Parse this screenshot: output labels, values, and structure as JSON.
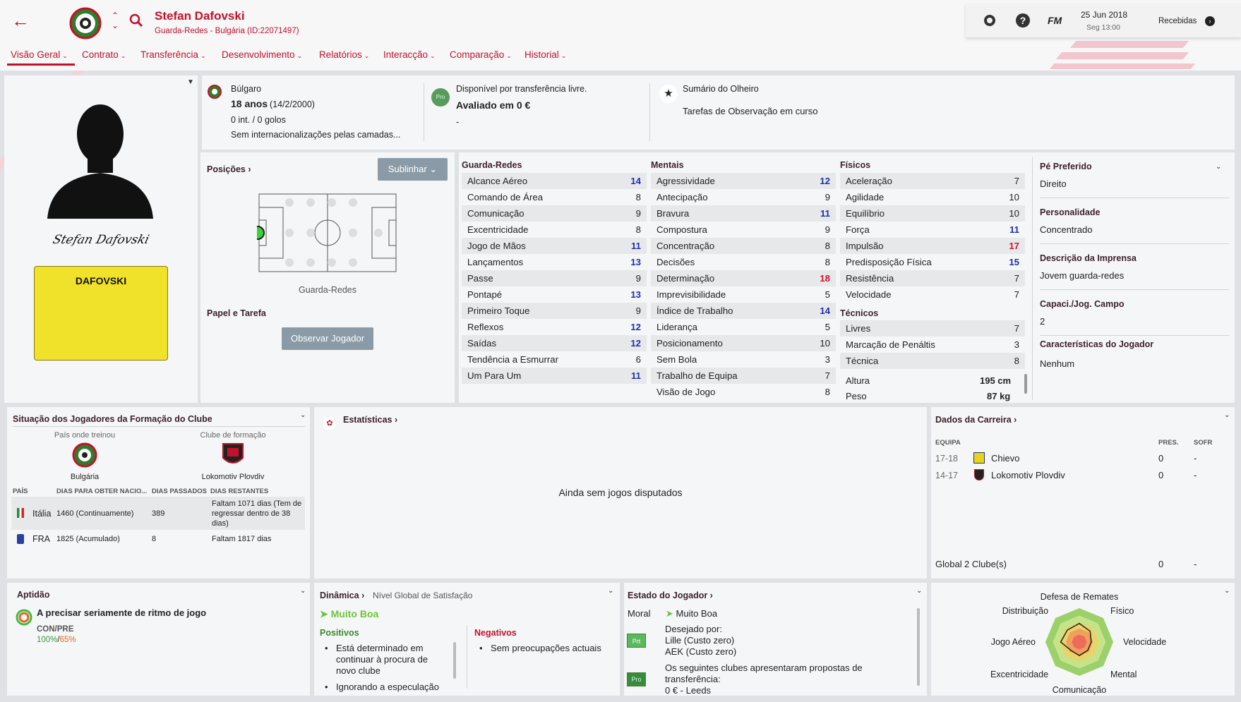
{
  "header": {
    "player_name": "Stefan Dafovski",
    "subtitle": "Guarda-Redes - Bulgária (ID:22071497)",
    "date": "25 Jun 2018",
    "time": "Seg 13:00",
    "fm_logo": "FM",
    "inbox_label": "Recebidas",
    "back_icon": "back-arrow-icon",
    "search_icon": "search-icon"
  },
  "tabs": [
    {
      "label": "Visão Geral"
    },
    {
      "label": "Contrato"
    },
    {
      "label": "Transferência"
    },
    {
      "label": "Desenvolvimento"
    },
    {
      "label": "Relatórios"
    },
    {
      "label": "Interacção"
    },
    {
      "label": "Comparação"
    },
    {
      "label": "Historial"
    }
  ],
  "profile": {
    "signature": "Stefan Dafovski",
    "shirt_name": "DAFOVSKI",
    "shirt_color": "#f0e12a"
  },
  "info": {
    "nationality": "Búlgaro",
    "age": "18 anos",
    "dob": "(14/2/2000)",
    "caps": "0 int. / 0 golos",
    "youth_caps": "Sem internacionalizações pelas camadas...",
    "transfer_status": "Disponível por transferência livre.",
    "value": "Avaliado em 0 €",
    "value_sub": "-",
    "pro_badge": "Pro",
    "scout_title": "Sumário do Olheiro",
    "scout_text": "Tarefas de Observação em curso"
  },
  "positions": {
    "title": "Posições",
    "highlight_btn": "Sublinhar",
    "position_label": "Guarda-Redes",
    "role_title": "Papel e Tarefa",
    "scout_btn": "Observar Jogador"
  },
  "attributes": {
    "goalkeeping_title": "Guarda-Redes",
    "goalkeeping": [
      {
        "name": "Alcance Aéreo",
        "value": "14"
      },
      {
        "name": "Comando de Área",
        "value": "8"
      },
      {
        "name": "Comunicação",
        "value": "9"
      },
      {
        "name": "Excentricidade",
        "value": "8"
      },
      {
        "name": "Jogo de Mãos",
        "value": "11"
      },
      {
        "name": "Lançamentos",
        "value": "13"
      },
      {
        "name": "Passe",
        "value": "9"
      },
      {
        "name": "Pontapé",
        "value": "13"
      },
      {
        "name": "Primeiro Toque",
        "value": "9"
      },
      {
        "name": "Reflexos",
        "value": "12"
      },
      {
        "name": "Saídas",
        "value": "12"
      },
      {
        "name": "Tendência a Esmurrar",
        "value": "6"
      },
      {
        "name": "Um Para Um",
        "value": "11"
      }
    ],
    "mental_title": "Mentais",
    "mental": [
      {
        "name": "Agressividade",
        "value": "12"
      },
      {
        "name": "Antecipação",
        "value": "9"
      },
      {
        "name": "Bravura",
        "value": "11"
      },
      {
        "name": "Compostura",
        "value": "9"
      },
      {
        "name": "Concentração",
        "value": "8"
      },
      {
        "name": "Decisões",
        "value": "8"
      },
      {
        "name": "Determinação",
        "value": "18"
      },
      {
        "name": "Imprevisibilidade",
        "value": "5"
      },
      {
        "name": "Índice de Trabalho",
        "value": "14"
      },
      {
        "name": "Liderança",
        "value": "5"
      },
      {
        "name": "Posicionamento",
        "value": "10"
      },
      {
        "name": "Sem Bola",
        "value": "3"
      },
      {
        "name": "Trabalho de Equipa",
        "value": "7"
      },
      {
        "name": "Visão de Jogo",
        "value": "8"
      }
    ],
    "physical_title": "Físicos",
    "physical": [
      {
        "name": "Aceleração",
        "value": "7"
      },
      {
        "name": "Agilidade",
        "value": "10"
      },
      {
        "name": "Equilíbrio",
        "value": "10"
      },
      {
        "name": "Força",
        "value": "11"
      },
      {
        "name": "Impulsão",
        "value": "17"
      },
      {
        "name": "Predisposição Física",
        "value": "15"
      },
      {
        "name": "Resistência",
        "value": "7"
      },
      {
        "name": "Velocidade",
        "value": "7"
      }
    ],
    "technical_title": "Técnicos",
    "technical": [
      {
        "name": "Livres",
        "value": "7"
      },
      {
        "name": "Marcação de Penáltis",
        "value": "3"
      },
      {
        "name": "Técnica",
        "value": "8"
      }
    ],
    "height_label": "Altura",
    "height": "195 cm",
    "weight_label": "Peso",
    "weight": "87 kg"
  },
  "side": {
    "foot_label": "Pé Preferido",
    "foot": "Direito",
    "personality_label": "Personalidade",
    "personality": "Concentrado",
    "press_label": "Descrição da Imprensa",
    "press": "Jovem guarda-redes",
    "caps_label": "Capaci./Jog. Campo",
    "caps": "2",
    "traits_label": "Características do Jogador",
    "traits": "Nenhum"
  },
  "homegrown": {
    "title": "Situação dos Jogadores da Formação do Clube",
    "trained_label": "País onde treinou",
    "trained": "Bulgária",
    "club_label": "Clube de formação",
    "club": "Lokomotiv Plovdiv",
    "col_country": "PAÍS",
    "col_days_needed": "DIAS PARA OBTER NACIO...",
    "col_days_passed": "DIAS PASSADOS",
    "col_days_left": "DIAS RESTANTES",
    "rows": [
      {
        "country": "Itália",
        "needed": "1460 (Continuamente)",
        "passed": "389",
        "left": "Faltam 1071 dias (Tem de regressar dentro de 38 dias)"
      },
      {
        "country": "FRA",
        "needed": "1825 (Acumulado)",
        "passed": "8",
        "left": "Faltam 1817 dias"
      }
    ]
  },
  "stats": {
    "title": "Estatísticas",
    "empty": "Ainda sem jogos disputados"
  },
  "career": {
    "title": "Dados da Carreira",
    "col_team": "EQUIPA",
    "col_apps": "PRES.",
    "col_conceded": "SOFR",
    "rows": [
      {
        "season": "17-18",
        "team": "Chievo",
        "apps": "0",
        "conceded": "-"
      },
      {
        "season": "14-17",
        "team": "Lokomotiv Plovdiv",
        "apps": "0",
        "conceded": "-"
      }
    ],
    "total_label": "Global",
    "total_clubs": "2 Clube(s)",
    "total_apps": "0",
    "total_conceded": "-"
  },
  "fitness": {
    "title": "Aptidão",
    "status": "A precisar seriamente de ritmo de jogo",
    "con_label": "CON/PRE",
    "con": "100%",
    "pre": "65%"
  },
  "dynamics": {
    "title": "Dinâmica",
    "subtitle": "Nível Global de Satisfação",
    "level": "Muito Boa",
    "positives_title": "Positivos",
    "positives": [
      "Está determinado em continuar à procura de novo clube",
      "Ignorando a especulação"
    ],
    "negatives_title": "Negativos",
    "negatives": [
      "Sem preocupações actuais"
    ]
  },
  "status": {
    "title": "Estado do Jogador",
    "moral_label": "Moral",
    "moral": "Muito Boa",
    "wanted_label": "Desejado por:",
    "wanted": [
      "Lille (Custo zero)",
      "AEK (Custo zero)"
    ],
    "offers_text": "Os seguintes clubes apresentaram propostas de transferência:",
    "offer_line": "0 € - Leeds",
    "prt_badge": "Prt",
    "pro_badge": "Pro"
  },
  "radar": {
    "labels": [
      "Defesa de Remates",
      "Físico",
      "Velocidade",
      "Mental",
      "Comunicação",
      "Excentricidade",
      "Jogo Aéreo",
      "Distribuição"
    ],
    "values": [
      0.55,
      0.45,
      0.35,
      0.35,
      0.4,
      0.35,
      0.55,
      0.5
    ]
  }
}
